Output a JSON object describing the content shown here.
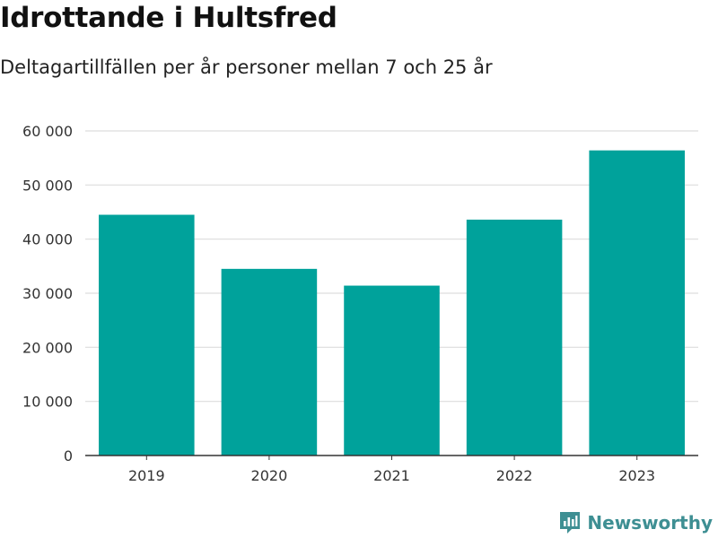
{
  "header": {
    "title": "Idrottande i Hultsfred",
    "subtitle": "Deltagartillfällen per år personer mellan 7 och 25 år"
  },
  "brand": {
    "name": "Newsworthy",
    "icon": "newsworthy-logo-icon",
    "color": "#3e8f93"
  },
  "chart_data": {
    "type": "bar",
    "title": "Idrottande i Hultsfred",
    "subtitle": "Deltagartillfällen per år personer mellan 7 och 25 år",
    "xlabel": "",
    "ylabel": "",
    "categories": [
      "2019",
      "2020",
      "2021",
      "2022",
      "2023"
    ],
    "values": [
      44500,
      34500,
      31400,
      43600,
      56400
    ],
    "ylim": [
      0,
      60000
    ],
    "yticks": [
      0,
      10000,
      20000,
      30000,
      40000,
      50000,
      60000
    ],
    "ytick_labels": [
      "0",
      "10 000",
      "20 000",
      "30 000",
      "40 000",
      "50 000",
      "60 000"
    ],
    "grid": true,
    "bar_color": "#00a29b"
  }
}
